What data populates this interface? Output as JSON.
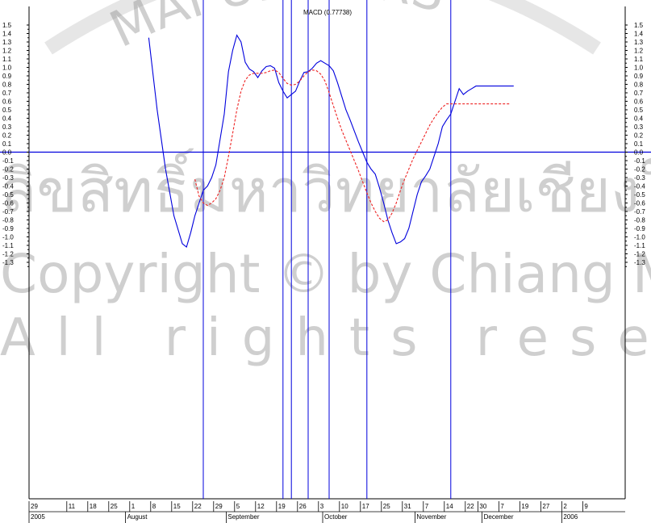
{
  "watermark": {
    "arc_text": "MAI UNIVERS",
    "thai_text": "ลิขสิทธิ์มหาวิทยาลัยเชียงใหม่",
    "copyright": "Copyright © by Chiang Mai University",
    "rights": "All rights reserved"
  },
  "chart_data": {
    "type": "line",
    "title": "MACD (0.77738)",
    "ylim": [
      -1.38,
      1.62
    ],
    "y_ticks": [
      1.5,
      1.4,
      1.3,
      1.2,
      1.1,
      1.0,
      0.9,
      0.8,
      0.7,
      0.6,
      0.5,
      0.4,
      0.3,
      0.2,
      0.1,
      0.0,
      -0.1,
      -0.2,
      -0.3,
      -0.4,
      -0.5,
      -0.6,
      -0.7,
      -0.8,
      -0.9,
      -1.0,
      -1.1,
      -1.2,
      -1.3
    ],
    "y_tick_labels": [
      "1.5",
      "1.4",
      "1.3",
      "1.2",
      "1.1",
      "1.0",
      "0.9",
      "0.8",
      "0.7",
      "0.6",
      "0.5",
      "0.4",
      "0.3",
      "0.2",
      "0.1",
      "0.0",
      "-0.1",
      "-0.2",
      "-0.3",
      "-0.4",
      "-0.5",
      "-0.6",
      "-0.7",
      "-0.8",
      "-0.9",
      "-1.0",
      "-1.1",
      "-1.2",
      "-1.3"
    ],
    "y_tick_labels_right": [
      "1.5",
      "1.4",
      "1.3",
      "1.2",
      "1.1",
      "1.0",
      "0.9",
      "0.8",
      "0.7",
      "0.6",
      "0.5",
      "0.4",
      "0.3",
      "0.2",
      "0.1",
      "0.0",
      "-0.1",
      "-0.2",
      "-0.3",
      "-0.4",
      "-0.5",
      "-0.6",
      "-0.7",
      "-0.8",
      "-0.9",
      "-1.0",
      "-1.1",
      "-1.2",
      "-1.3"
    ],
    "x_range": [
      0,
      165
    ],
    "x_day_ticks": [
      {
        "x": 0,
        "label": "29"
      },
      {
        "x": 9,
        "label": "11"
      },
      {
        "x": 14,
        "label": "18"
      },
      {
        "x": 19,
        "label": "25"
      },
      {
        "x": 24,
        "label": "1"
      },
      {
        "x": 29,
        "label": "8"
      },
      {
        "x": 34,
        "label": "15"
      },
      {
        "x": 39,
        "label": "22"
      },
      {
        "x": 44,
        "label": "29"
      },
      {
        "x": 49,
        "label": "5"
      },
      {
        "x": 54,
        "label": "12"
      },
      {
        "x": 59,
        "label": "19"
      },
      {
        "x": 64,
        "label": "26"
      },
      {
        "x": 69,
        "label": "3"
      },
      {
        "x": 74,
        "label": "10"
      },
      {
        "x": 79,
        "label": "17"
      },
      {
        "x": 84,
        "label": "25"
      },
      {
        "x": 89,
        "label": "31"
      },
      {
        "x": 94,
        "label": "7"
      },
      {
        "x": 99,
        "label": "14"
      },
      {
        "x": 104,
        "label": "22"
      },
      {
        "x": 107,
        "label": "30"
      },
      {
        "x": 112,
        "label": "7"
      },
      {
        "x": 117,
        "label": "19"
      },
      {
        "x": 122,
        "label": "27"
      },
      {
        "x": 127,
        "label": "2"
      },
      {
        "x": 132,
        "label": "9"
      }
    ],
    "x_month_labels": [
      {
        "x": 0,
        "label": "2005"
      },
      {
        "x": 23,
        "label": "August"
      },
      {
        "x": 47,
        "label": "September"
      },
      {
        "x": 70,
        "label": "October"
      },
      {
        "x": 92,
        "label": "November"
      },
      {
        "x": 108,
        "label": "December"
      },
      {
        "x": 127,
        "label": "2006"
      }
    ],
    "vertical_lines": [
      40,
      59,
      61,
      65,
      70,
      79,
      99
    ],
    "series": [
      {
        "style": "solid",
        "color": "#0000dd",
        "x": [
          27,
          29,
          31,
          33,
          35,
          36,
          37,
          38,
          39,
          40,
          41,
          42,
          43,
          44,
          45,
          46,
          47,
          48,
          49,
          50,
          51,
          52,
          53,
          54,
          55,
          56,
          57,
          58,
          59,
          60,
          61,
          62,
          63,
          64,
          65,
          66,
          67,
          68,
          69,
          70,
          71,
          72,
          73,
          74,
          75,
          76,
          77,
          78,
          79,
          80,
          81,
          82,
          83,
          84,
          85,
          86,
          87,
          88,
          89,
          90,
          91,
          92,
          93,
          94,
          95,
          96,
          97,
          98,
          99,
          100,
          101,
          102,
          103,
          104,
          105,
          106,
          107,
          108,
          109,
          110,
          111,
          112,
          113,
          114
        ],
        "values": [
          1.35,
          0.5,
          -0.2,
          -0.75,
          -1.08,
          -1.12,
          -0.95,
          -0.75,
          -0.6,
          -0.45,
          -0.4,
          -0.3,
          -0.15,
          0.15,
          0.45,
          0.95,
          1.2,
          1.38,
          1.3,
          1.06,
          0.98,
          0.95,
          0.88,
          0.96,
          1.01,
          1.02,
          0.99,
          0.82,
          0.72,
          0.64,
          0.68,
          0.72,
          0.84,
          0.94,
          0.95,
          0.99,
          1.05,
          1.08,
          1.05,
          1.02,
          0.96,
          0.82,
          0.66,
          0.5,
          0.38,
          0.25,
          0.12,
          0.0,
          -0.12,
          -0.2,
          -0.26,
          -0.42,
          -0.6,
          -0.8,
          -0.95,
          -1.08,
          -1.06,
          -1.02,
          -0.9,
          -0.7,
          -0.5,
          -0.35,
          -0.28,
          -0.2,
          -0.05,
          0.1,
          0.3,
          0.38,
          0.45,
          0.6,
          0.75,
          0.68,
          0.72,
          0.75,
          0.78,
          0.78,
          0.78,
          0.78,
          0.78,
          0.78,
          0.78,
          0.78,
          0.78,
          0.78
        ],
        "x_end": 113
      },
      {
        "style": "dashed",
        "color": "#ee2222",
        "x": [
          38,
          39,
          40,
          41,
          42,
          43,
          44,
          45,
          46,
          47,
          48,
          49,
          50,
          51,
          52,
          53,
          54,
          55,
          56,
          57,
          58,
          59,
          60,
          61,
          62,
          63,
          64,
          65,
          66,
          67,
          68,
          69,
          70,
          71,
          72,
          73,
          74,
          75,
          76,
          77,
          78,
          79,
          80,
          81,
          82,
          83,
          84,
          85,
          86,
          87,
          88,
          89,
          90,
          91,
          92,
          93,
          94,
          95,
          96,
          97,
          98,
          99,
          100,
          101,
          102,
          103,
          104,
          105,
          106,
          107,
          108,
          109,
          110,
          111,
          112,
          113
        ],
        "values": [
          -0.32,
          -0.52,
          -0.6,
          -0.63,
          -0.6,
          -0.55,
          -0.45,
          -0.3,
          -0.05,
          0.22,
          0.5,
          0.72,
          0.85,
          0.91,
          0.93,
          0.93,
          0.93,
          0.94,
          0.96,
          0.97,
          0.94,
          0.87,
          0.81,
          0.79,
          0.8,
          0.84,
          0.9,
          0.95,
          0.97,
          0.96,
          0.92,
          0.84,
          0.7,
          0.55,
          0.4,
          0.26,
          0.14,
          0.02,
          -0.1,
          -0.22,
          -0.35,
          -0.48,
          -0.6,
          -0.7,
          -0.78,
          -0.82,
          -0.8,
          -0.72,
          -0.6,
          -0.45,
          -0.32,
          -0.2,
          -0.08,
          0.02,
          0.12,
          0.22,
          0.32,
          0.4,
          0.47,
          0.53,
          0.57,
          0.57,
          0.57,
          0.57,
          0.57,
          0.57,
          0.57,
          0.57,
          0.57,
          0.57,
          0.57,
          0.57,
          0.57,
          0.57,
          0.57,
          0.57
        ]
      }
    ]
  }
}
